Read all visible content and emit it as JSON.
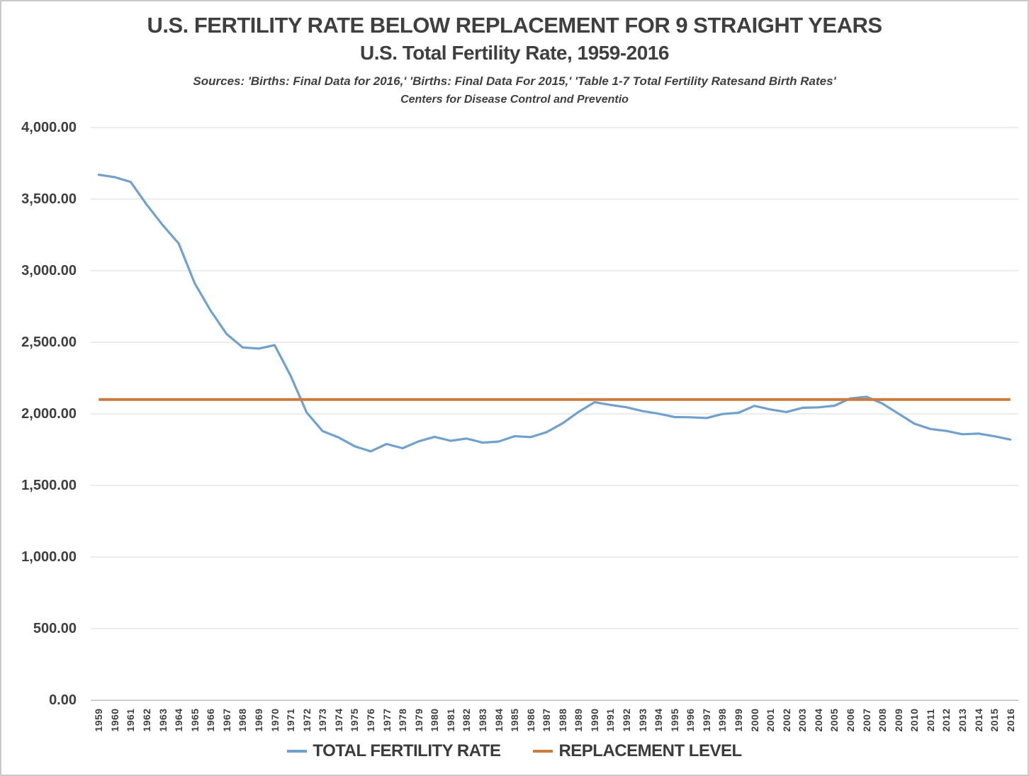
{
  "header": {
    "title": "U.S. FERTILITY RATE BELOW REPLACEMENT FOR 9 STRAIGHT YEARS",
    "subtitle": "U.S. Total Fertility Rate, 1959-2016",
    "sources_line1": "Sources: 'Births: Final Data for 2016,' 'Births: Final Data For 2015,' 'Table 1-7 Total Fertility Ratesand Birth Rates'",
    "sources_line2": "Centers for Disease Control and Preventio"
  },
  "chart_data": {
    "type": "line",
    "title": "U.S. FERTILITY RATE BELOW REPLACEMENT FOR 9 STRAIGHT YEARS",
    "subtitle": "U.S. Total Fertility Rate, 1959-2016",
    "xlabel": "",
    "ylabel": "",
    "ylim": [
      0,
      4000
    ],
    "y_tick_interval": 500,
    "grid": true,
    "legend_position": "bottom",
    "x": [
      "1959",
      "1960",
      "1961",
      "1962",
      "1963",
      "1964",
      "1965",
      "1966",
      "1967",
      "1968",
      "1969",
      "1970",
      "1971",
      "1972",
      "1973",
      "1974",
      "1975",
      "1976",
      "1977",
      "1978",
      "1979",
      "1980",
      "1981",
      "1982",
      "1983",
      "1984",
      "1985",
      "1986",
      "1987",
      "1988",
      "1989",
      "1990",
      "1991",
      "1992",
      "1993",
      "1994",
      "1995",
      "1996",
      "1997",
      "1998",
      "1999",
      "2000",
      "2001",
      "2002",
      "2003",
      "2004",
      "2005",
      "2006",
      "2007",
      "2008",
      "2009",
      "2010",
      "2011",
      "2012",
      "2013",
      "2014",
      "2015",
      "2016"
    ],
    "y_ticks": [
      {
        "v": 0,
        "label": "0.00"
      },
      {
        "v": 500,
        "label": "500.00"
      },
      {
        "v": 1000,
        "label": "1,000.00"
      },
      {
        "v": 1500,
        "label": "1,500.00"
      },
      {
        "v": 2000,
        "label": "2,000.00"
      },
      {
        "v": 2500,
        "label": "2,500.00"
      },
      {
        "v": 3000,
        "label": "3,000.00"
      },
      {
        "v": 3500,
        "label": "3,500.00"
      },
      {
        "v": 4000,
        "label": "4,000.00"
      }
    ],
    "series": [
      {
        "name": "TOTAL FERTILITY RATE",
        "color": "#70A1CC",
        "values": [
          3670.5,
          3653.5,
          3620.5,
          3461.5,
          3318.5,
          3190.5,
          2912.5,
          2720.5,
          2557.5,
          2464.5,
          2456.0,
          2480.0,
          2266.5,
          2010.0,
          1879.0,
          1835.0,
          1774.0,
          1738.0,
          1789.5,
          1760.0,
          1808.0,
          1839.5,
          1812.0,
          1827.5,
          1799.0,
          1806.5,
          1844.0,
          1837.5,
          1872.0,
          1934.0,
          2014.0,
          2081.0,
          2062.5,
          2046.0,
          2019.5,
          2001.5,
          1977.5,
          1976.0,
          1971.0,
          1999.0,
          2007.5,
          2056.0,
          2030.5,
          2013.0,
          2042.5,
          2045.5,
          2057.0,
          2108.0,
          2120.0,
          2072.0,
          2002.0,
          1931.0,
          1894.5,
          1880.5,
          1857.5,
          1862.5,
          1843.5,
          1820.5
        ]
      },
      {
        "name": "REPLACEMENT LEVEL",
        "color": "#C97B40",
        "type": "constant",
        "value": 2100
      }
    ]
  },
  "colors": {
    "text": "#3F3F3F",
    "gridline": "#D9D9D9",
    "axis": "#BFBFBF",
    "total_fertility_rate_line": "#70A1CC",
    "replacement_level_line": "#C97B40"
  }
}
